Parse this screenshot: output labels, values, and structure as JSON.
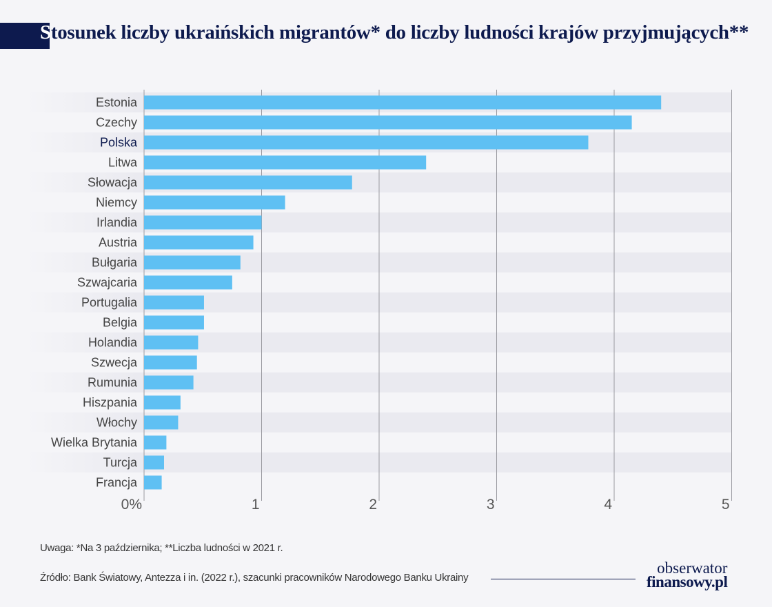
{
  "title_first_letter": "S",
  "title_rest": "tosunek liczby ukraińskich migrantów* do liczby ludności krajów przyjmujących**",
  "note": "Uwaga: *Na 3 października; **Liczba ludności w 2021 r.",
  "source": "Źródło: Bank Światowy, Antezza i in. (2022 r.), szacunki pracowników Narodowego Banku Ukrainy",
  "logo": {
    "line1": "obserwator",
    "line2": "finansowy.pl"
  },
  "colors": {
    "bar": "#5fc0f3",
    "title": "#0d1a4e",
    "highlight_label": "#0d1a4e",
    "band": "#eaeaf0"
  },
  "chart_data": {
    "type": "bar",
    "orientation": "horizontal",
    "categories": [
      "Estonia",
      "Czechy",
      "Polska",
      "Litwa",
      "Słowacja",
      "Niemcy",
      "Irlandia",
      "Austria",
      "Bułgaria",
      "Szwajcaria",
      "Portugalia",
      "Belgia",
      "Holandia",
      "Szwecja",
      "Rumunia",
      "Hiszpania",
      "Włochy",
      "Wielka Brytania",
      "Turcja",
      "Francja"
    ],
    "values": [
      4.4,
      4.15,
      3.78,
      2.4,
      1.77,
      1.2,
      1.0,
      0.93,
      0.82,
      0.75,
      0.51,
      0.51,
      0.46,
      0.45,
      0.42,
      0.31,
      0.29,
      0.19,
      0.17,
      0.15
    ],
    "highlight": "Polska",
    "xticks": [
      "0%",
      "1",
      "2",
      "3",
      "4",
      "5"
    ],
    "xlim": [
      0,
      5
    ],
    "grid": true
  }
}
